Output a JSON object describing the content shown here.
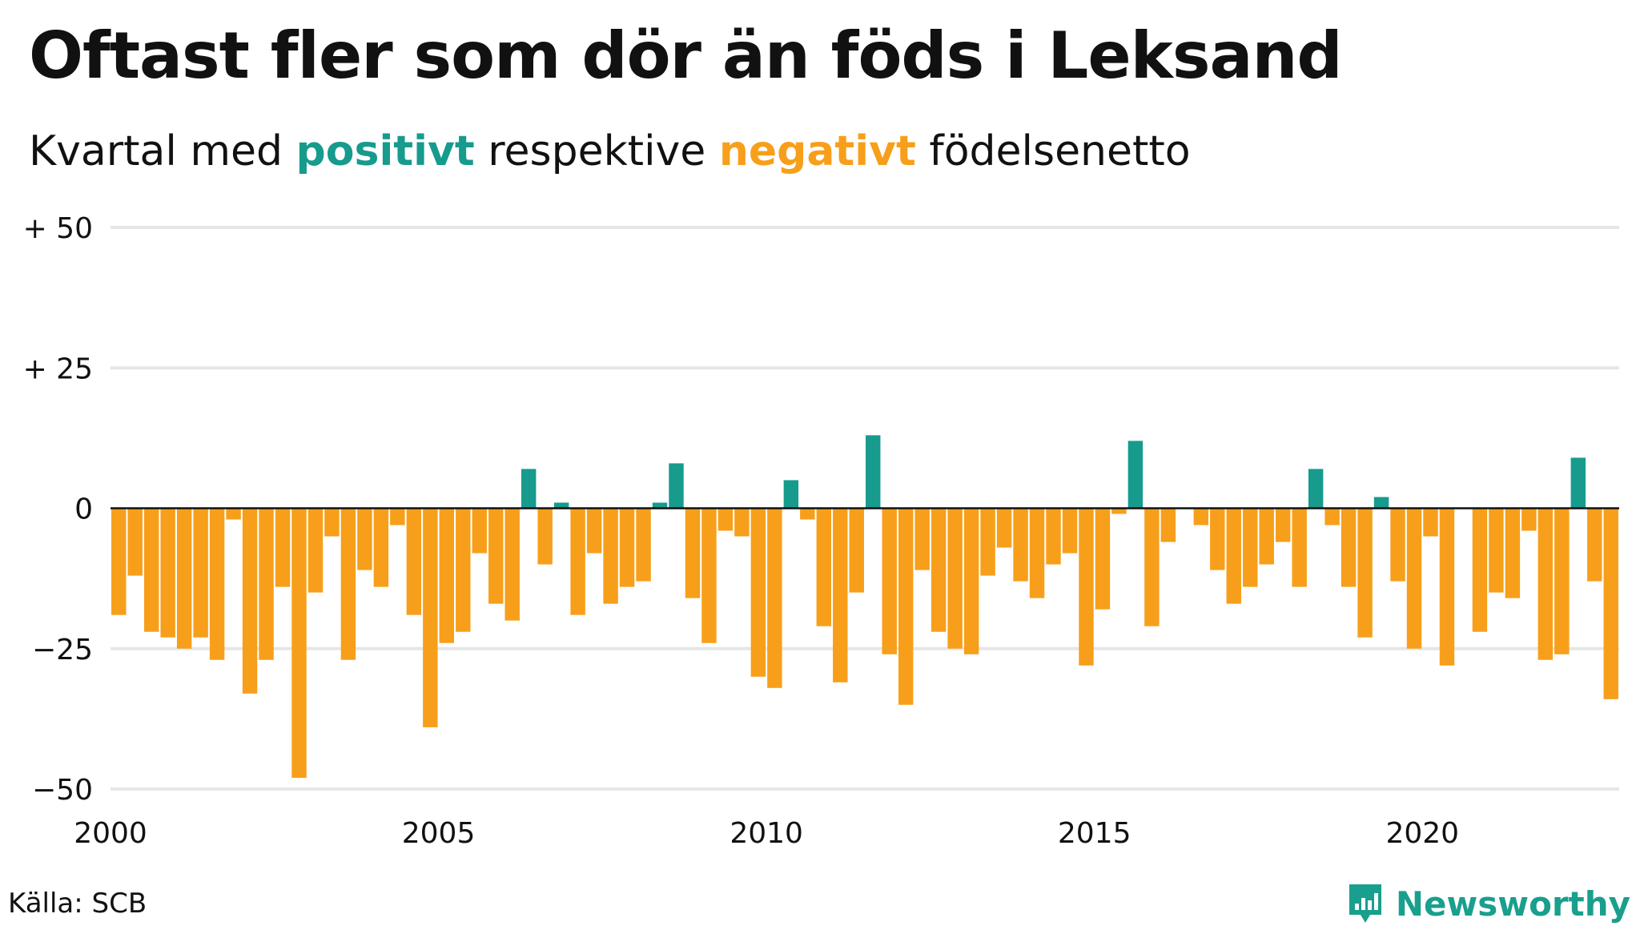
{
  "title": "Oftast fler som dör än föds i Leksand",
  "subtitle": {
    "prefix": "Kvartal med",
    "positive_word": "positivt",
    "middle": "respektive",
    "negative_word": "negativt",
    "suffix": "födelsenetto"
  },
  "source": "Källa: SCB",
  "brand": {
    "name": "Newsworthy"
  },
  "colors": {
    "positive": "#169b8d",
    "negative": "#f79f1a",
    "grid": "#e6e6e6",
    "text": "#111111"
  },
  "chart_data": {
    "type": "bar",
    "x_start": 2000,
    "x_end": 2023,
    "x_ticks": [
      {
        "value": 2000,
        "label": "2000"
      },
      {
        "value": 2005,
        "label": "2005"
      },
      {
        "value": 2010,
        "label": "2010"
      },
      {
        "value": 2015,
        "label": "2015"
      },
      {
        "value": 2020,
        "label": "2020"
      }
    ],
    "y_ticks": [
      {
        "value": 50,
        "label": "+ 50"
      },
      {
        "value": 25,
        "label": "+ 25"
      },
      {
        "value": 0,
        "label": "0"
      },
      {
        "value": -25,
        "label": "−25"
      },
      {
        "value": -50,
        "label": "−50"
      }
    ],
    "ylim": [
      -50,
      50
    ],
    "grid": true,
    "values": [
      -19,
      -12,
      -22,
      -23,
      -25,
      -23,
      -27,
      -2,
      -33,
      -27,
      -14,
      -48,
      -15,
      -5,
      -27,
      -11,
      -14,
      -3,
      -19,
      -39,
      -24,
      -22,
      -8,
      -17,
      -20,
      7,
      -10,
      1,
      -19,
      -8,
      -17,
      -14,
      -13,
      1,
      8,
      -16,
      -24,
      -4,
      -5,
      -30,
      -32,
      5,
      -2,
      -21,
      -31,
      -15,
      13,
      -26,
      -35,
      -11,
      -22,
      -25,
      -26,
      -12,
      -7,
      -13,
      -16,
      -10,
      -8,
      -28,
      -18,
      -1,
      12,
      -21,
      -6,
      0,
      -3,
      -11,
      -17,
      -14,
      -10,
      -6,
      -14,
      7,
      -3,
      -14,
      -23,
      2,
      -13,
      -25,
      -5,
      -28,
      0,
      -22,
      -15,
      -16,
      -4,
      -27,
      -26,
      9,
      -13,
      -34
    ]
  }
}
